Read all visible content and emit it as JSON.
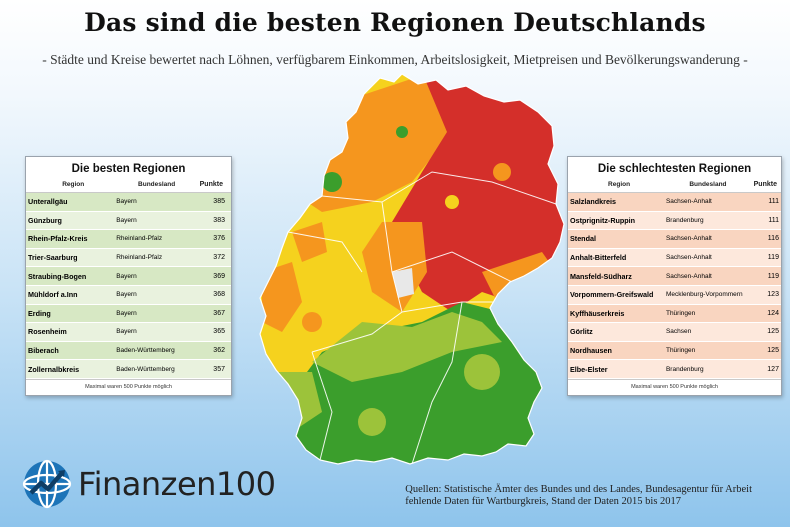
{
  "title": "Das sind die besten Regionen Deutschlands",
  "subtitle": "- Städte und Kreise bewertet nach Löhnen, verfügbarem Einkommen, Arbeitslosigkeit, Mietpreisen und Bevölkerungswanderung -",
  "colors": {
    "best": "#3b9e2c",
    "good": "#9cc33a",
    "medium": "#f5d21e",
    "below": "#f5961e",
    "worst": "#d42f2a",
    "no_data": "#e8e8e8"
  },
  "best_table": {
    "title": "Die besten Regionen",
    "headers": {
      "region": "Region",
      "state": "Bundesland",
      "points": "Punkte"
    },
    "rows": [
      {
        "region": "Unterallgäu",
        "state": "Bayern",
        "points": "385"
      },
      {
        "region": "Günzburg",
        "state": "Bayern",
        "points": "383"
      },
      {
        "region": "Rhein-Pfalz-Kreis",
        "state": "Rheinland-Pfalz",
        "points": "376"
      },
      {
        "region": "Trier-Saarburg",
        "state": "Rheinland-Pfalz",
        "points": "372"
      },
      {
        "region": "Straubing-Bogen",
        "state": "Bayern",
        "points": "369"
      },
      {
        "region": "Mühldorf a.Inn",
        "state": "Bayern",
        "points": "368"
      },
      {
        "region": "Erding",
        "state": "Bayern",
        "points": "367"
      },
      {
        "region": "Rosenheim",
        "state": "Bayern",
        "points": "365"
      },
      {
        "region": "Biberach",
        "state": "Baden-Württemberg",
        "points": "362"
      },
      {
        "region": "Zollernalbkreis",
        "state": "Baden-Württemberg",
        "points": "357"
      }
    ],
    "note": "Maximal waren 500 Punkte möglich"
  },
  "worst_table": {
    "title": "Die schlechtesten Regionen",
    "headers": {
      "region": "Region",
      "state": "Bundesland",
      "points": "Punkte"
    },
    "rows": [
      {
        "region": "Salzlandkreis",
        "state": "Sachsen-Anhalt",
        "points": "111"
      },
      {
        "region": "Ostprignitz-Ruppin",
        "state": "Brandenburg",
        "points": "111"
      },
      {
        "region": "Stendal",
        "state": "Sachsen-Anhalt",
        "points": "116"
      },
      {
        "region": "Anhalt-Bitterfeld",
        "state": "Sachsen-Anhalt",
        "points": "119"
      },
      {
        "region": "Mansfeld-Südharz",
        "state": "Sachsen-Anhalt",
        "points": "119"
      },
      {
        "region": "Vorpommern-Greifswald",
        "state": "Mecklenburg-Vorpommern",
        "points": "123"
      },
      {
        "region": "Kyffhäuserkreis",
        "state": "Thüringen",
        "points": "124"
      },
      {
        "region": "Görlitz",
        "state": "Sachsen",
        "points": "125"
      },
      {
        "region": "Nordhausen",
        "state": "Thüringen",
        "points": "125"
      },
      {
        "region": "Elbe-Elster",
        "state": "Brandenburg",
        "points": "127"
      }
    ],
    "note": "Maximal waren 500 Punkte möglich"
  },
  "logo": {
    "word": "Finanzen",
    "number": "100",
    "icon": "globe-chart-icon"
  },
  "source": {
    "line1": "Quellen: Statistische Ämter des Bundes und des Landes, Bundesagentur für Arbeit",
    "line2": "fehlende Daten für Wartburgkreis, Stand der Daten 2015 bis 2017"
  }
}
